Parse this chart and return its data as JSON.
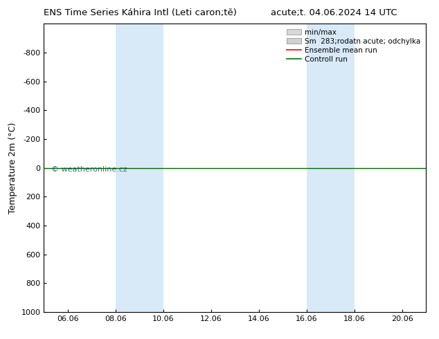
{
  "title_left": "ENS Time Series Káhira Intl (Leti caron;tě)",
  "title_right": "acute;t. 04.06.2024 14 UTC",
  "ylabel": "Temperature 2m (°C)",
  "ylim_top": 1000,
  "ylim_bottom": -1000,
  "yticks": [
    -800,
    -600,
    -400,
    -200,
    0,
    200,
    400,
    600,
    800,
    1000
  ],
  "xtick_labels": [
    "06.06",
    "08.06",
    "10.06",
    "12.06",
    "14.06",
    "16.06",
    "18.06",
    "20.06"
  ],
  "xtick_positions": [
    1,
    3,
    5,
    7,
    9,
    11,
    13,
    15
  ],
  "xlim": [
    0,
    16
  ],
  "shade1_x0": 3,
  "shade1_x1": 5,
  "shade2_x0": 11,
  "shade2_x1": 13,
  "shade_color": "#d8eaf8",
  "shade_alpha": 1.0,
  "green_line_y": 0,
  "green_line_color": "#006600",
  "watermark": "© weatheronline.cz",
  "watermark_color": "#4169aa",
  "legend_minmax_color": "#d8d8d8",
  "legend_sm_color": "#d0d0d0",
  "legend_mean_color": "red",
  "legend_control_color": "#007700",
  "bg_color": "#ffffff",
  "title_fontsize": 9.5,
  "ylabel_fontsize": 9,
  "tick_fontsize": 8,
  "legend_fontsize": 7.5
}
